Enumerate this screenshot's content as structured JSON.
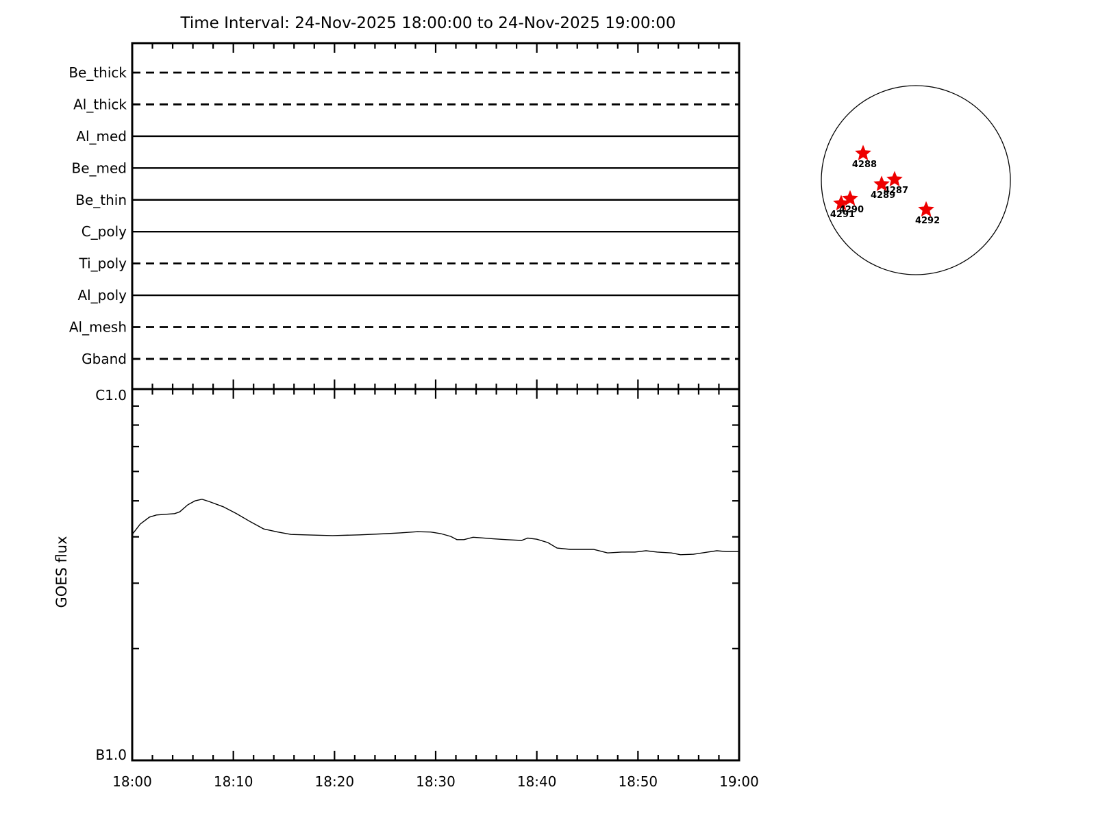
{
  "title": "Time Interval: 24-Nov-2025 18:00:00 to 24-Nov-2025 19:00:00",
  "chart_data": [
    {
      "id": "xrt-filter-timeline",
      "type": "line",
      "description": "Horizontal timeline lines, one per filter, spanning the full time interval",
      "categories": [
        "Be_thick",
        "Al_thick",
        "Al_med",
        "Be_med",
        "Be_thin",
        "C_poly",
        "Ti_poly",
        "Al_poly",
        "Al_mesh",
        "Gband"
      ],
      "line_styles": [
        "dashed",
        "dashed",
        "solid",
        "solid",
        "solid",
        "solid",
        "dashed",
        "solid",
        "dashed",
        "dashed"
      ],
      "xlim_minutes": [
        0,
        60
      ],
      "grid": false,
      "legend": false
    },
    {
      "id": "goes-flux",
      "type": "line",
      "ylabel": "GOES flux",
      "y_axis_labels": {
        "top": "C1.0",
        "bottom": "B1.0"
      },
      "y_scale": "log",
      "ylim_watts_per_m2": [
        1e-07,
        1e-06
      ],
      "xlim_minutes": [
        0,
        60
      ],
      "x_tick_labels": [
        "18:00",
        "18:10",
        "18:20",
        "18:30",
        "18:40",
        "18:50",
        "19:00"
      ],
      "x_minor_tick_minutes": 2,
      "grid": false,
      "legend": false,
      "series": [
        {
          "name": "GOES flux",
          "units": "1e-7 W/m^2",
          "points": [
            [
              0,
              4.06
            ],
            [
              0.8,
              4.33
            ],
            [
              1.7,
              4.52
            ],
            [
              2.4,
              4.58
            ],
            [
              4.2,
              4.62
            ],
            [
              4.7,
              4.67
            ],
            [
              5.5,
              4.88
            ],
            [
              6.2,
              5.0
            ],
            [
              6.9,
              5.05
            ],
            [
              7.6,
              4.98
            ],
            [
              9,
              4.82
            ],
            [
              10.3,
              4.62
            ],
            [
              11.7,
              4.39
            ],
            [
              13,
              4.2
            ],
            [
              14.4,
              4.12
            ],
            [
              15.7,
              4.06
            ],
            [
              17.1,
              4.05
            ],
            [
              19.8,
              4.03
            ],
            [
              22.5,
              4.05
            ],
            [
              25.2,
              4.08
            ],
            [
              26.5,
              4.1
            ],
            [
              28.2,
              4.13
            ],
            [
              29.5,
              4.12
            ],
            [
              30.5,
              4.08
            ],
            [
              31.5,
              4.01
            ],
            [
              32.1,
              3.93
            ],
            [
              32.8,
              3.93
            ],
            [
              33.7,
              3.99
            ],
            [
              34.3,
              3.98
            ],
            [
              35.7,
              3.95
            ],
            [
              37,
              3.93
            ],
            [
              38.5,
              3.91
            ],
            [
              39.1,
              3.97
            ],
            [
              40,
              3.94
            ],
            [
              41.1,
              3.86
            ],
            [
              42,
              3.73
            ],
            [
              43.3,
              3.7
            ],
            [
              45.6,
              3.7
            ],
            [
              47,
              3.62
            ],
            [
              48.4,
              3.64
            ],
            [
              49.7,
              3.64
            ],
            [
              50.8,
              3.67
            ],
            [
              51.9,
              3.64
            ],
            [
              53.3,
              3.62
            ],
            [
              54.2,
              3.58
            ],
            [
              55.5,
              3.59
            ],
            [
              56.9,
              3.64
            ],
            [
              57.8,
              3.67
            ],
            [
              58.7,
              3.65
            ],
            [
              60,
              3.65
            ]
          ]
        }
      ]
    }
  ],
  "sun_map": {
    "marker": "star",
    "marker_color": "#ee0000",
    "active_regions": [
      {
        "id": "4288",
        "dx": -0.558,
        "dy": -0.283
      },
      {
        "id": "4287",
        "dx": -0.225,
        "dy": -0.007
      },
      {
        "id": "4289",
        "dx": -0.362,
        "dy": 0.043
      },
      {
        "id": "4291",
        "dx": -0.79,
        "dy": 0.246
      },
      {
        "id": "4290",
        "dx": -0.696,
        "dy": 0.196
      },
      {
        "id": "4292",
        "dx": 0.109,
        "dy": 0.312
      }
    ]
  },
  "colors": {
    "foreground": "#000000",
    "background": "#ffffff",
    "star": "#ee0000"
  }
}
